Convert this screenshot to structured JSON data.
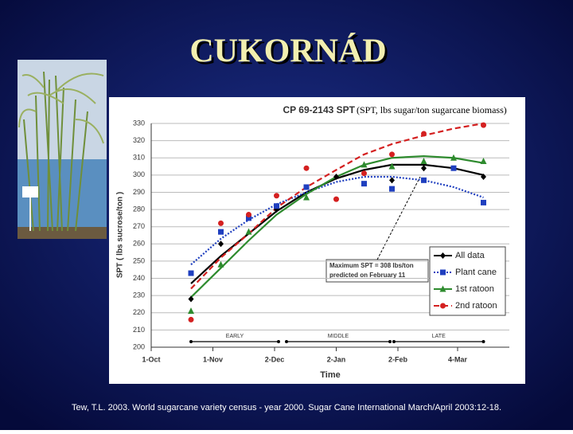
{
  "slide_title": "CUKORNÁD",
  "citation": "Tew, T.L. 2003. World sugarcane variety census - year 2000. Sugar Cane International March/April 2003:12-18.",
  "chart_data": {
    "type": "scatter",
    "title": "CP 69-2143 SPT",
    "subtitle": "(SPT, lbs sugar/ton sugarcane biomass)",
    "x_label": "Time",
    "y_label": "SPT ( lbs sucrose/ton )",
    "x": [
      20,
      35,
      49,
      63,
      78,
      93,
      107,
      121,
      137,
      152,
      167
    ],
    "xlim": [
      0,
      180
    ],
    "xticks": [
      {
        "value": 0,
        "label": "1-Oct"
      },
      {
        "value": 31,
        "label": "1-Nov"
      },
      {
        "value": 62,
        "label": "2-Dec"
      },
      {
        "value": 93,
        "label": "2-Jan"
      },
      {
        "value": 124,
        "label": "2-Feb"
      },
      {
        "value": 154,
        "label": "4-Mar"
      }
    ],
    "ylim": [
      200,
      330
    ],
    "yticks": [
      200,
      210,
      220,
      230,
      240,
      250,
      260,
      270,
      280,
      290,
      300,
      310,
      320,
      330
    ],
    "grid": true,
    "series": [
      {
        "name": "All data",
        "color": "#000000",
        "marker": "diamond",
        "line_style": "solid",
        "values": [
          228,
          260,
          null,
          280,
          null,
          299,
          null,
          297,
          304,
          null,
          299
        ],
        "trend": [
          237,
          253,
          266,
          279,
          290,
          298,
          303,
          306,
          306,
          304,
          300
        ]
      },
      {
        "name": "Plant cane",
        "color": "#1f3fbf",
        "marker": "square",
        "line_style": "dotted",
        "values": [
          243,
          267,
          275,
          282,
          293,
          null,
          295,
          292,
          297,
          304,
          284
        ],
        "trend": [
          248,
          263,
          274,
          283,
          290,
          296,
          299,
          299,
          297,
          293,
          287
        ]
      },
      {
        "name": "1st ratoon",
        "color": "#2e8b2e",
        "marker": "triangle",
        "line_style": "solid",
        "values": [
          221,
          248,
          267,
          null,
          287,
          null,
          306,
          305,
          308,
          310,
          308
        ],
        "trend": [
          229,
          246,
          262,
          277,
          289,
          299,
          306,
          310,
          311,
          310,
          307
        ]
      },
      {
        "name": "2nd ratoon",
        "color": "#d42020",
        "marker": "circle",
        "line_style": "dashed",
        "values": [
          216,
          272,
          277,
          288,
          304,
          286,
          301,
          312,
          324,
          null,
          329
        ],
        "trend": [
          234,
          252,
          266,
          281,
          293,
          303,
          312,
          318,
          323,
          327,
          330
        ]
      }
    ],
    "periods": [
      {
        "label": "EARLY",
        "start": 20,
        "end": 64
      },
      {
        "label": "MIDDLE",
        "start": 68,
        "end": 120
      },
      {
        "label": "LATE",
        "start": 122,
        "end": 167
      }
    ],
    "annotation": [
      "Maximum SPT = 308 lbs/ton",
      "predicted on February 11"
    ]
  }
}
